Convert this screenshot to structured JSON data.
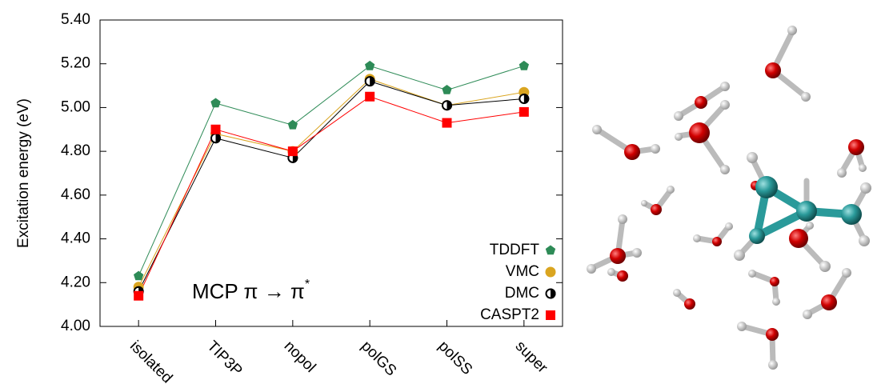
{
  "chart_data": {
    "type": "line",
    "y_label": "Excitation energy (eV)",
    "annotation": {
      "main": "MCP  π → π",
      "superscript": "*"
    },
    "categories": [
      "isolated",
      "TIP3P",
      "nopol",
      "polGS",
      "polSS",
      "super"
    ],
    "ylim": [
      4.0,
      5.4
    ],
    "yticks": [
      {
        "value": 4.0,
        "label": "4.00"
      },
      {
        "value": 4.2,
        "label": "4.20"
      },
      {
        "value": 4.4,
        "label": "4.40"
      },
      {
        "value": 4.6,
        "label": "4.60"
      },
      {
        "value": 4.8,
        "label": "4.80"
      },
      {
        "value": 5.0,
        "label": "5.00"
      },
      {
        "value": 5.2,
        "label": "5.20"
      },
      {
        "value": 5.4,
        "label": "5.40"
      }
    ],
    "legend": "lower right",
    "series": [
      {
        "name": "TDDFT",
        "color": "#2e8b57",
        "marker": "pentagon",
        "values": [
          4.23,
          5.02,
          4.92,
          5.19,
          5.08,
          5.19
        ]
      },
      {
        "name": "VMC",
        "color": "#daa520",
        "marker": "circle",
        "values": [
          4.18,
          4.88,
          4.8,
          5.13,
          5.01,
          5.07
        ]
      },
      {
        "name": "DMC",
        "color": "#000000",
        "marker": "half-circle",
        "values": [
          4.16,
          4.86,
          4.77,
          5.12,
          5.01,
          5.04
        ]
      },
      {
        "name": "CASPT2",
        "color": "#ff0000",
        "marker": "square",
        "values": [
          4.14,
          4.9,
          4.8,
          5.05,
          4.93,
          4.98
        ]
      }
    ]
  }
}
